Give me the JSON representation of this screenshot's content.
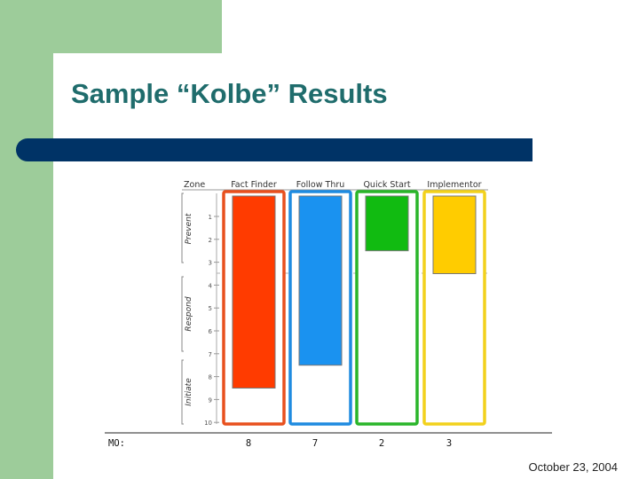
{
  "slide": {
    "title": "Sample “Kolbe” Results",
    "date": "October 23, 2004",
    "colors": {
      "side_green": "#9dcc9a",
      "title_teal": "#1f6c6c",
      "band_navy": "#003366"
    }
  },
  "chart_data": {
    "type": "bar",
    "zone_header": "Zone",
    "categories": [
      "Fact Finder",
      "Follow Thru",
      "Quick Start",
      "Implementor"
    ],
    "values": [
      8,
      7,
      2,
      3
    ],
    "colors": [
      "#ff3b00",
      "#1a92f0",
      "#11bb11",
      "#ffcc00"
    ],
    "frame_colors": [
      "#e8501e",
      "#1f8be0",
      "#2ab52a",
      "#f2d11c"
    ],
    "ylim": [
      1,
      10
    ],
    "yticks": [
      1,
      2,
      3,
      4,
      5,
      6,
      7,
      8,
      9,
      10
    ],
    "zones": [
      "Prevent",
      "Respond",
      "Initiate"
    ],
    "row_label": "MO:",
    "mo_values": [
      "8",
      "7",
      "2",
      "3"
    ],
    "grid": false
  }
}
